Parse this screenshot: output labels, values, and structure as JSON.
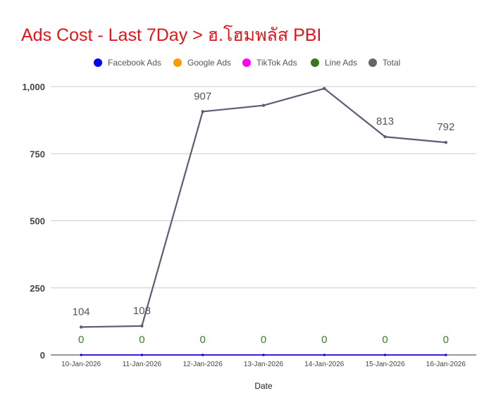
{
  "chart_data": {
    "type": "line",
    "title": "Ads Cost - Last 7Day > ฮ.โฮมพลัส PBI",
    "xlabel": "Date",
    "ylabel": "",
    "ylim": [
      0,
      1000
    ],
    "yticks": [
      "0",
      "250",
      "500",
      "750",
      "1,000"
    ],
    "ytick_values": [
      0,
      250,
      500,
      750,
      1000
    ],
    "categories": [
      "10-Jan-2026",
      "11-Jan-2026",
      "12-Jan-2026",
      "13-Jan-2026",
      "14-Jan-2026",
      "15-Jan-2026",
      "16-Jan-2026"
    ],
    "series": [
      {
        "name": "Facebook Ads",
        "color": "#0000ff",
        "values": [
          0,
          0,
          0,
          0,
          0,
          0,
          0
        ]
      },
      {
        "name": "Google Ads",
        "color": "#ff9900",
        "values": [
          0,
          0,
          0,
          0,
          0,
          0,
          0
        ]
      },
      {
        "name": "TikTok Ads",
        "color": "#ff00ff",
        "values": [
          0,
          0,
          0,
          0,
          0,
          0,
          0
        ]
      },
      {
        "name": "Line Ads",
        "color": "#38761d",
        "values": [
          0,
          0,
          0,
          0,
          0,
          0,
          0
        ],
        "data_labels": [
          "0",
          "0",
          "0",
          "0",
          "0",
          "0",
          "0"
        ]
      },
      {
        "name": "Total",
        "color": "#666666",
        "values": [
          104,
          108,
          907,
          930,
          993,
          813,
          792
        ],
        "data_labels": [
          "104",
          "108",
          "907",
          "",
          "",
          "813",
          "792"
        ]
      }
    ],
    "legend_position": "top",
    "grid": true,
    "colors": {
      "title": "#e4141b",
      "total_line": "#5f5a78",
      "gridline": "#cccccc",
      "baseline": "#333333",
      "zero_label": "#3a7d22"
    }
  }
}
